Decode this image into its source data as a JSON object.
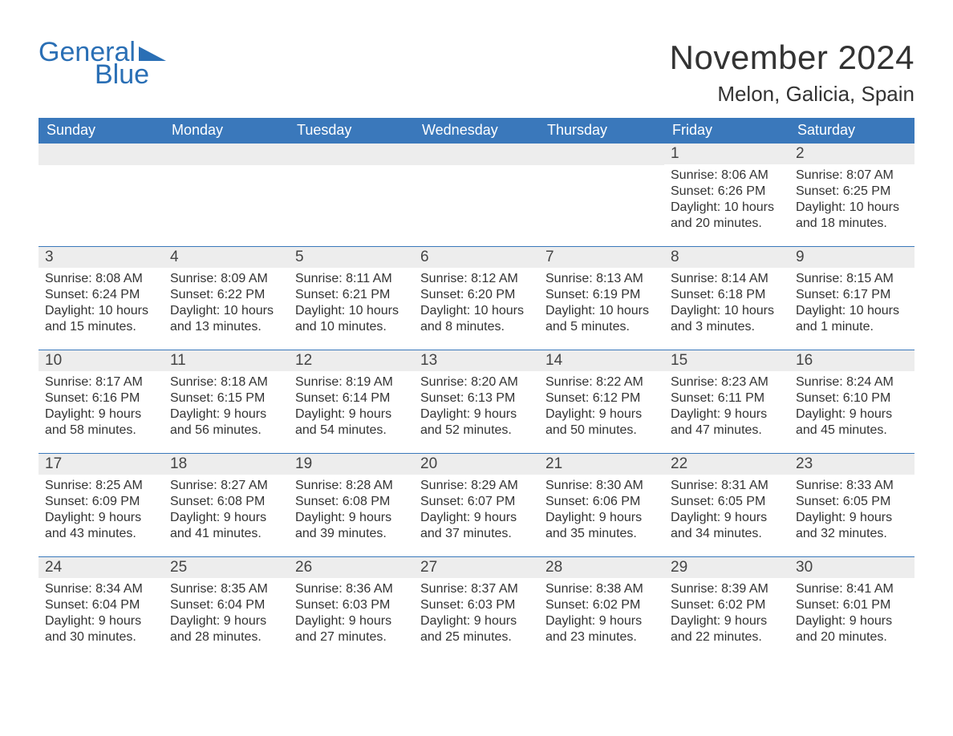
{
  "logo": {
    "text_general": "General",
    "text_blue": "Blue",
    "brand_color": "#2a6fb5"
  },
  "title": "November 2024",
  "location": "Melon, Galicia, Spain",
  "colors": {
    "header_bg": "#3a78bb",
    "header_text": "#ffffff",
    "daynum_bg": "#ededed",
    "week_border": "#3a78bb",
    "text": "#333333",
    "background": "#ffffff"
  },
  "weekdays": [
    "Sunday",
    "Monday",
    "Tuesday",
    "Wednesday",
    "Thursday",
    "Friday",
    "Saturday"
  ],
  "weeks": [
    [
      null,
      null,
      null,
      null,
      null,
      {
        "n": "1",
        "sunrise": "8:06 AM",
        "sunset": "6:26 PM",
        "daylight": "10 hours and 20 minutes."
      },
      {
        "n": "2",
        "sunrise": "8:07 AM",
        "sunset": "6:25 PM",
        "daylight": "10 hours and 18 minutes."
      }
    ],
    [
      {
        "n": "3",
        "sunrise": "8:08 AM",
        "sunset": "6:24 PM",
        "daylight": "10 hours and 15 minutes."
      },
      {
        "n": "4",
        "sunrise": "8:09 AM",
        "sunset": "6:22 PM",
        "daylight": "10 hours and 13 minutes."
      },
      {
        "n": "5",
        "sunrise": "8:11 AM",
        "sunset": "6:21 PM",
        "daylight": "10 hours and 10 minutes."
      },
      {
        "n": "6",
        "sunrise": "8:12 AM",
        "sunset": "6:20 PM",
        "daylight": "10 hours and 8 minutes."
      },
      {
        "n": "7",
        "sunrise": "8:13 AM",
        "sunset": "6:19 PM",
        "daylight": "10 hours and 5 minutes."
      },
      {
        "n": "8",
        "sunrise": "8:14 AM",
        "sunset": "6:18 PM",
        "daylight": "10 hours and 3 minutes."
      },
      {
        "n": "9",
        "sunrise": "8:15 AM",
        "sunset": "6:17 PM",
        "daylight": "10 hours and 1 minute."
      }
    ],
    [
      {
        "n": "10",
        "sunrise": "8:17 AM",
        "sunset": "6:16 PM",
        "daylight": "9 hours and 58 minutes."
      },
      {
        "n": "11",
        "sunrise": "8:18 AM",
        "sunset": "6:15 PM",
        "daylight": "9 hours and 56 minutes."
      },
      {
        "n": "12",
        "sunrise": "8:19 AM",
        "sunset": "6:14 PM",
        "daylight": "9 hours and 54 minutes."
      },
      {
        "n": "13",
        "sunrise": "8:20 AM",
        "sunset": "6:13 PM",
        "daylight": "9 hours and 52 minutes."
      },
      {
        "n": "14",
        "sunrise": "8:22 AM",
        "sunset": "6:12 PM",
        "daylight": "9 hours and 50 minutes."
      },
      {
        "n": "15",
        "sunrise": "8:23 AM",
        "sunset": "6:11 PM",
        "daylight": "9 hours and 47 minutes."
      },
      {
        "n": "16",
        "sunrise": "8:24 AM",
        "sunset": "6:10 PM",
        "daylight": "9 hours and 45 minutes."
      }
    ],
    [
      {
        "n": "17",
        "sunrise": "8:25 AM",
        "sunset": "6:09 PM",
        "daylight": "9 hours and 43 minutes."
      },
      {
        "n": "18",
        "sunrise": "8:27 AM",
        "sunset": "6:08 PM",
        "daylight": "9 hours and 41 minutes."
      },
      {
        "n": "19",
        "sunrise": "8:28 AM",
        "sunset": "6:08 PM",
        "daylight": "9 hours and 39 minutes."
      },
      {
        "n": "20",
        "sunrise": "8:29 AM",
        "sunset": "6:07 PM",
        "daylight": "9 hours and 37 minutes."
      },
      {
        "n": "21",
        "sunrise": "8:30 AM",
        "sunset": "6:06 PM",
        "daylight": "9 hours and 35 minutes."
      },
      {
        "n": "22",
        "sunrise": "8:31 AM",
        "sunset": "6:05 PM",
        "daylight": "9 hours and 34 minutes."
      },
      {
        "n": "23",
        "sunrise": "8:33 AM",
        "sunset": "6:05 PM",
        "daylight": "9 hours and 32 minutes."
      }
    ],
    [
      {
        "n": "24",
        "sunrise": "8:34 AM",
        "sunset": "6:04 PM",
        "daylight": "9 hours and 30 minutes."
      },
      {
        "n": "25",
        "sunrise": "8:35 AM",
        "sunset": "6:04 PM",
        "daylight": "9 hours and 28 minutes."
      },
      {
        "n": "26",
        "sunrise": "8:36 AM",
        "sunset": "6:03 PM",
        "daylight": "9 hours and 27 minutes."
      },
      {
        "n": "27",
        "sunrise": "8:37 AM",
        "sunset": "6:03 PM",
        "daylight": "9 hours and 25 minutes."
      },
      {
        "n": "28",
        "sunrise": "8:38 AM",
        "sunset": "6:02 PM",
        "daylight": "9 hours and 23 minutes."
      },
      {
        "n": "29",
        "sunrise": "8:39 AM",
        "sunset": "6:02 PM",
        "daylight": "9 hours and 22 minutes."
      },
      {
        "n": "30",
        "sunrise": "8:41 AM",
        "sunset": "6:01 PM",
        "daylight": "9 hours and 20 minutes."
      }
    ]
  ],
  "labels": {
    "sunrise": "Sunrise:",
    "sunset": "Sunset:",
    "daylight": "Daylight:"
  }
}
